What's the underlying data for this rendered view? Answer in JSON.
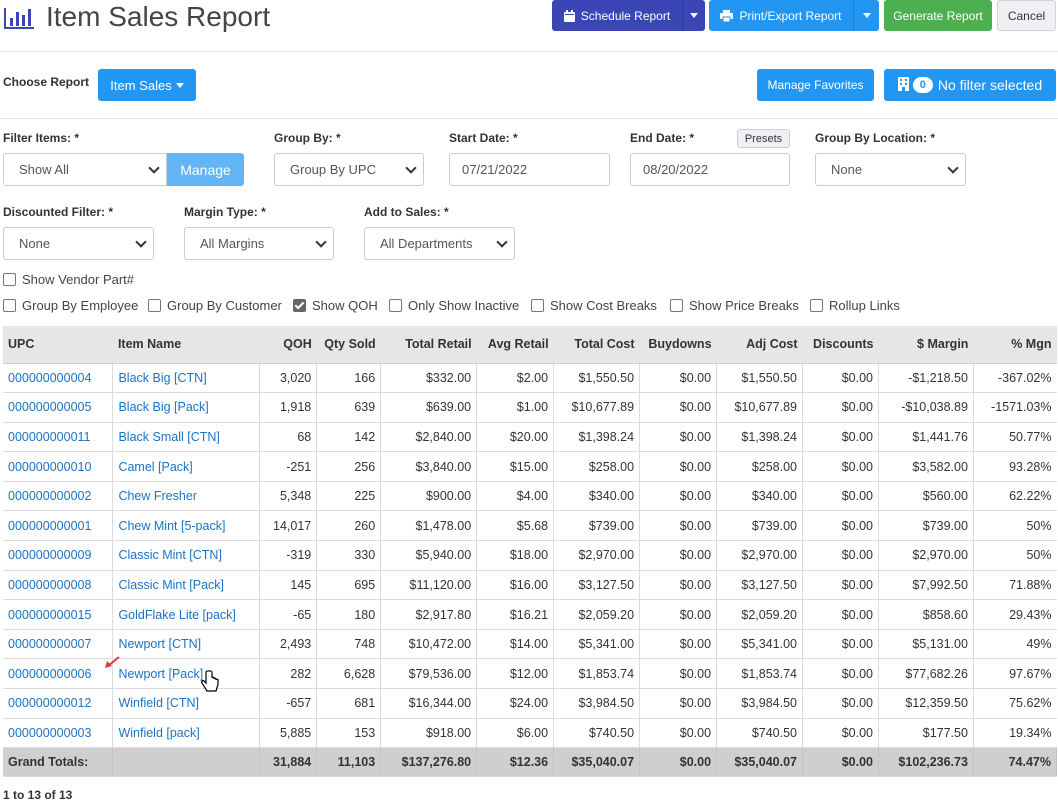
{
  "header": {
    "title": "Item Sales Report",
    "schedule_label": "Schedule Report",
    "print_label": "Print/Export Report",
    "generate_label": "Generate Report",
    "cancel_label": "Cancel",
    "colors": {
      "schedule": "#3a46b5",
      "primary": "#2196f3",
      "generate": "#4caf50"
    }
  },
  "report_bar": {
    "choose_label": "Choose Report",
    "report_dropdown": "Item Sales",
    "favorites_label": "Manage Favorites",
    "filter_count": "0",
    "filter_label": "No filter selected"
  },
  "filters": {
    "filter_items": {
      "label": "Filter Items: *",
      "value": "Show All",
      "manage_label": "Manage"
    },
    "group_by": {
      "label": "Group By: *",
      "value": "Group By UPC"
    },
    "start_date": {
      "label": "Start Date: *",
      "value": "07/21/2022"
    },
    "end_date": {
      "label": "End Date: *",
      "value": "08/20/2022",
      "presets_label": "Presets"
    },
    "group_by_location": {
      "label": "Group By Location: *",
      "value": "None"
    },
    "discounted": {
      "label": "Discounted Filter: *",
      "value": "None"
    },
    "margin_type": {
      "label": "Margin Type: *",
      "value": "All Margins"
    },
    "add_to_sales": {
      "label": "Add to Sales: *",
      "value": "All Departments"
    }
  },
  "options": {
    "show_vendor_part": {
      "label": "Show Vendor Part#",
      "checked": false
    },
    "group_by_employee": {
      "label": "Group By Employee",
      "checked": false
    },
    "group_by_customer": {
      "label": "Group By Customer",
      "checked": false
    },
    "show_qoh": {
      "label": "Show QOH",
      "checked": true
    },
    "only_show_inactive": {
      "label": "Only Show Inactive",
      "checked": false
    },
    "show_cost_breaks": {
      "label": "Show Cost Breaks",
      "checked": false
    },
    "show_price_breaks": {
      "label": "Show Price Breaks",
      "checked": false
    },
    "rollup_links": {
      "label": "Rollup Links",
      "checked": false
    }
  },
  "table": {
    "columns": [
      "UPC",
      "Item Name",
      "QOH",
      "Qty Sold",
      "Total Retail",
      "Avg Retail",
      "Total Cost",
      "Buydowns",
      "Adj Cost",
      "Discounts",
      "$ Margin",
      "% Mgn"
    ],
    "rows": [
      [
        "000000000004",
        "Black Big [CTN]",
        "3,020",
        "166",
        "$332.00",
        "$2.00",
        "$1,550.50",
        "$0.00",
        "$1,550.50",
        "$0.00",
        "-$1,218.50",
        "-367.02%"
      ],
      [
        "000000000005",
        "Black Big [Pack]",
        "1,918",
        "639",
        "$639.00",
        "$1.00",
        "$10,677.89",
        "$0.00",
        "$10,677.89",
        "$0.00",
        "-$10,038.89",
        "-1571.03%"
      ],
      [
        "000000000011",
        "Black Small [CTN]",
        "68",
        "142",
        "$2,840.00",
        "$20.00",
        "$1,398.24",
        "$0.00",
        "$1,398.24",
        "$0.00",
        "$1,441.76",
        "50.77%"
      ],
      [
        "000000000010",
        "Camel [Pack]",
        "-251",
        "256",
        "$3,840.00",
        "$15.00",
        "$258.00",
        "$0.00",
        "$258.00",
        "$0.00",
        "$3,582.00",
        "93.28%"
      ],
      [
        "000000000002",
        "Chew Fresher",
        "5,348",
        "225",
        "$900.00",
        "$4.00",
        "$340.00",
        "$0.00",
        "$340.00",
        "$0.00",
        "$560.00",
        "62.22%"
      ],
      [
        "000000000001",
        "Chew Mint [5-pack]",
        "14,017",
        "260",
        "$1,478.00",
        "$5.68",
        "$739.00",
        "$0.00",
        "$739.00",
        "$0.00",
        "$739.00",
        "50%"
      ],
      [
        "000000000009",
        "Classic Mint [CTN]",
        "-319",
        "330",
        "$5,940.00",
        "$18.00",
        "$2,970.00",
        "$0.00",
        "$2,970.00",
        "$0.00",
        "$2,970.00",
        "50%"
      ],
      [
        "000000000008",
        "Classic Mint [Pack]",
        "145",
        "695",
        "$11,120.00",
        "$16.00",
        "$3,127.50",
        "$0.00",
        "$3,127.50",
        "$0.00",
        "$7,992.50",
        "71.88%"
      ],
      [
        "000000000015",
        "GoldFlake Lite [pack]",
        "-65",
        "180",
        "$2,917.80",
        "$16.21",
        "$2,059.20",
        "$0.00",
        "$2,059.20",
        "$0.00",
        "$858.60",
        "29.43%"
      ],
      [
        "000000000007",
        "Newport [CTN]",
        "2,493",
        "748",
        "$10,472.00",
        "$14.00",
        "$5,341.00",
        "$0.00",
        "$5,341.00",
        "$0.00",
        "$5,131.00",
        "49%"
      ],
      [
        "000000000006",
        "Newport [Pack]",
        "282",
        "6,628",
        "$79,536.00",
        "$12.00",
        "$1,853.74",
        "$0.00",
        "$1,853.74",
        "$0.00",
        "$77,682.26",
        "97.67%"
      ],
      [
        "000000000012",
        "Winfield [CTN]",
        "-657",
        "681",
        "$16,344.00",
        "$24.00",
        "$3,984.50",
        "$0.00",
        "$3,984.50",
        "$0.00",
        "$12,359.50",
        "75.62%"
      ],
      [
        "000000000003",
        "Winfield [pack]",
        "5,885",
        "153",
        "$918.00",
        "$6.00",
        "$740.50",
        "$0.00",
        "$740.50",
        "$0.00",
        "$177.50",
        "19.34%"
      ]
    ],
    "totals": [
      "Grand Totals:",
      "",
      "31,884",
      "11,103",
      "$137,276.80",
      "$12.36",
      "$35,040.07",
      "$0.00",
      "$35,040.07",
      "$0.00",
      "$102,236.73",
      "74.47%"
    ]
  },
  "pager": {
    "text": "1 to 13 of 13"
  },
  "icons": {
    "title": "bar-chart-icon",
    "schedule": "calendar-icon",
    "print": "printer-icon",
    "filter": "building-icon",
    "pointer": "hand-cursor-icon",
    "annotation": "red-arrow-icon"
  }
}
